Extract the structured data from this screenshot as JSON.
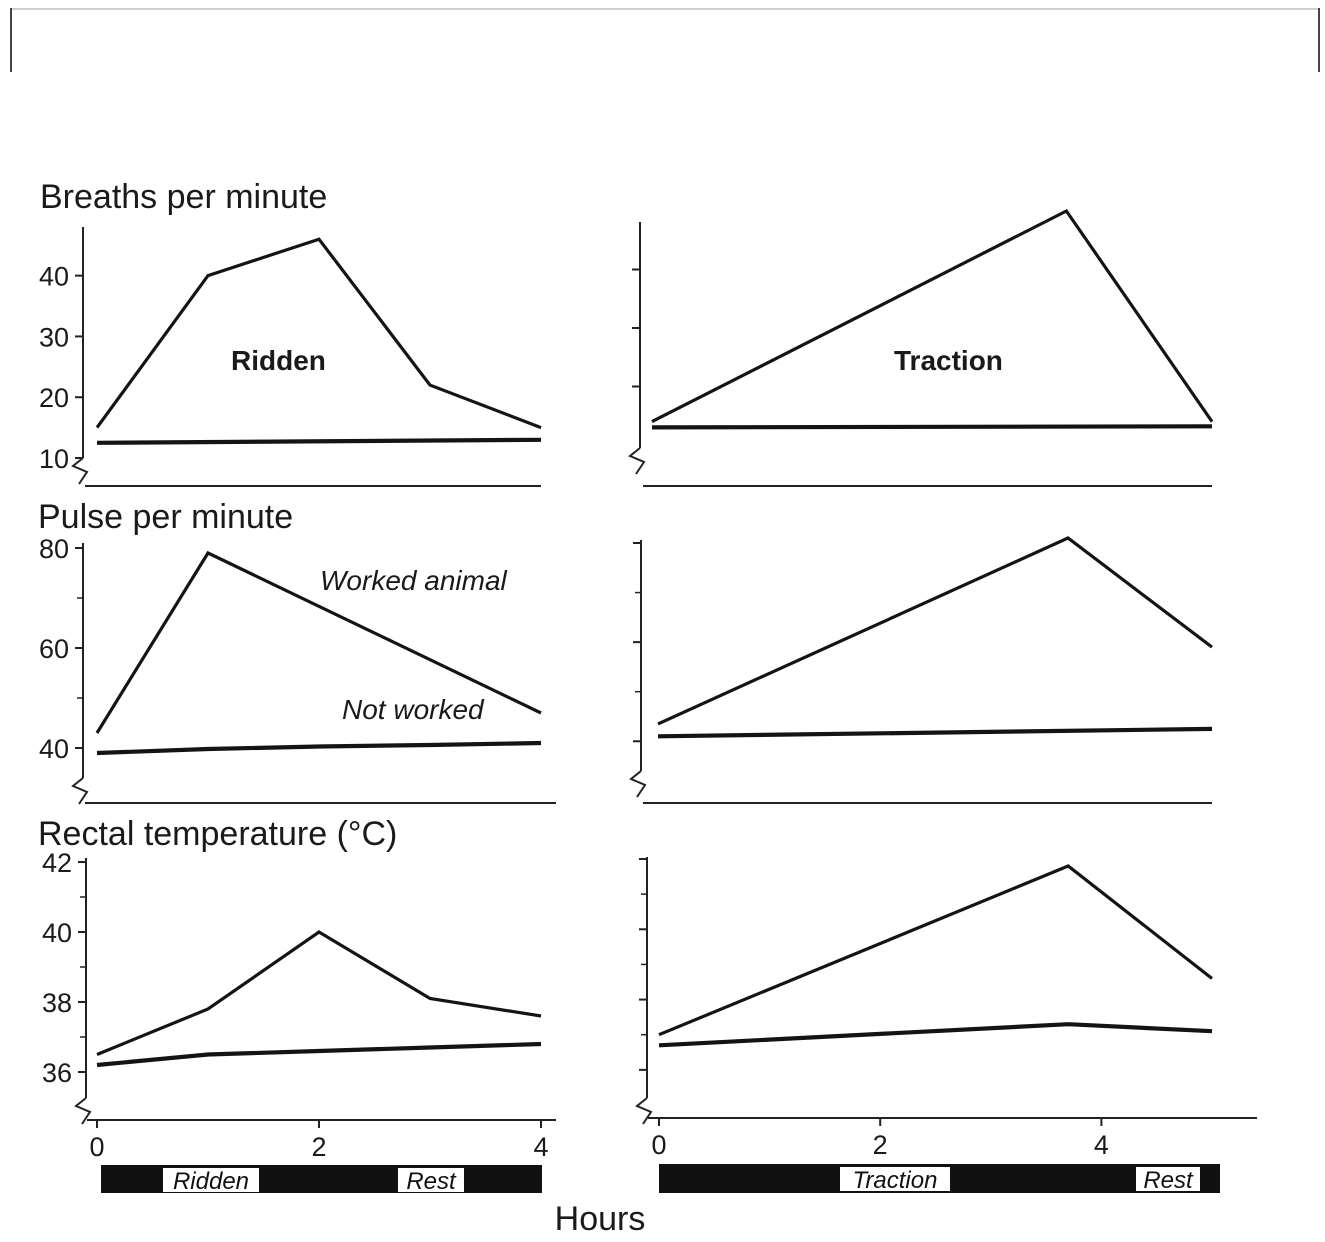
{
  "chart_data": [
    {
      "type": "line",
      "panel": "ridden-breaths",
      "title": "Breaths per minute",
      "panel_label": "Ridden",
      "ylim": [
        10,
        48
      ],
      "y_ticks": [
        10,
        20,
        30,
        40
      ],
      "xlim": [
        0,
        4
      ],
      "series": [
        {
          "name": "",
          "x": [
            0,
            1,
            2,
            3,
            4
          ],
          "y": [
            15,
            40,
            46,
            22,
            15
          ]
        },
        {
          "name": "",
          "x": [
            0,
            4
          ],
          "y": [
            12.5,
            13
          ]
        }
      ]
    },
    {
      "type": "line",
      "panel": "traction-breaths",
      "panel_label": "Traction",
      "ylim": [
        10,
        50
      ],
      "y_ticks": [
        20,
        30,
        40
      ],
      "xlim": [
        0,
        5
      ],
      "series": [
        {
          "name": "",
          "x": [
            0,
            3.7,
            5
          ],
          "y": [
            14,
            50,
            14
          ]
        },
        {
          "name": "",
          "x": [
            0,
            5
          ],
          "y": [
            13,
            13.2
          ]
        }
      ]
    },
    {
      "type": "line",
      "panel": "ridden-pulse",
      "title": "Pulse per minute",
      "ylim": [
        34,
        80
      ],
      "y_ticks": [
        40,
        60,
        80
      ],
      "xlim": [
        0,
        4
      ],
      "series": [
        {
          "name": "Worked animal",
          "x": [
            0,
            1,
            4
          ],
          "y": [
            43,
            79,
            47
          ]
        },
        {
          "name": "Not worked",
          "x": [
            0,
            1,
            2,
            3,
            4
          ],
          "y": [
            39,
            39.8,
            40.3,
            40.6,
            41
          ]
        }
      ]
    },
    {
      "type": "line",
      "panel": "traction-pulse",
      "ylim": [
        34,
        80
      ],
      "y_ticks": [
        40,
        60,
        80
      ],
      "xlim": [
        0,
        5
      ],
      "series": [
        {
          "name": "",
          "x": [
            0,
            3.7,
            5
          ],
          "y": [
            43.5,
            81,
            59
          ]
        },
        {
          "name": "",
          "x": [
            0,
            5
          ],
          "y": [
            41,
            42.5
          ]
        }
      ]
    },
    {
      "type": "line",
      "panel": "ridden-temperature",
      "title": "Rectal temperature (°C)",
      "ylim": [
        35,
        42
      ],
      "y_ticks": [
        36,
        38,
        40,
        42
      ],
      "xlim": [
        0,
        4
      ],
      "x_ticks": [
        0,
        2,
        4
      ],
      "series": [
        {
          "name": "",
          "x": [
            0,
            1,
            2,
            3,
            4
          ],
          "y": [
            36.5,
            37.8,
            40,
            38.1,
            37.6
          ]
        },
        {
          "name": "",
          "x": [
            0,
            1,
            2,
            3,
            4
          ],
          "y": [
            36.2,
            36.5,
            36.6,
            36.7,
            36.8
          ]
        }
      ]
    },
    {
      "type": "line",
      "panel": "traction-temperature",
      "ylim": [
        35,
        42
      ],
      "y_ticks": [
        36,
        38,
        40,
        42
      ],
      "xlim": [
        0,
        5
      ],
      "x_ticks": [
        0,
        2,
        4
      ],
      "series": [
        {
          "name": "",
          "x": [
            0,
            3.7,
            5
          ],
          "y": [
            37,
            41.8,
            38.6
          ]
        },
        {
          "name": "",
          "x": [
            0,
            3.7,
            5
          ],
          "y": [
            36.7,
            37.3,
            37.1
          ]
        }
      ]
    }
  ],
  "activity_bars": {
    "ridden": [
      "Ridden",
      "Rest"
    ],
    "traction": [
      "Traction",
      "Rest"
    ]
  },
  "xlabel": "Hours"
}
